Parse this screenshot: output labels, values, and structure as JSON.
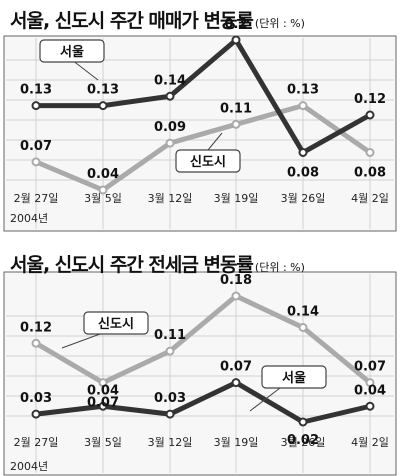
{
  "chart_data": [
    {
      "type": "line",
      "title": "서울, 신도시 주간 매매가 변동률",
      "unit": "(단위 : %)",
      "categories": [
        "2월 27일",
        "3월 5일",
        "3월 12일",
        "3월 19일",
        "3월 26일",
        "4월 2일"
      ],
      "year_label": "2004년",
      "series": [
        {
          "name": "서울",
          "values": [
            0.13,
            0.13,
            0.14,
            0.2,
            0.08,
            0.12
          ],
          "value_labels": [
            "0.13",
            "0.13",
            "0.14",
            "0.2",
            "0.08",
            "0.12"
          ],
          "color": "#333333"
        },
        {
          "name": "신도시",
          "values": [
            0.07,
            0.04,
            0.09,
            0.11,
            0.13,
            0.08
          ],
          "value_labels": [
            "0.07",
            "0.04",
            "0.09",
            "0.11",
            "0.13",
            "0.08"
          ],
          "color": "#aaaaaa"
        }
      ],
      "grid": true
    },
    {
      "type": "line",
      "title": "서울, 신도시 주간 전세금 변동률",
      "unit": "(단위 : %)",
      "categories": [
        "2월 27일",
        "3월 5일",
        "3월 12일",
        "3월 19일",
        "3월 26일",
        "4월 2일"
      ],
      "year_label": "2004년",
      "series": [
        {
          "name": "서울",
          "values": [
            0.03,
            0.04,
            0.03,
            0.07,
            0.02,
            0.04
          ],
          "value_labels": [
            "0.03",
            "0.04",
            "0.03",
            "0.07",
            "0.02",
            "0.04"
          ],
          "color": "#333333"
        },
        {
          "name": "신도시",
          "values": [
            0.12,
            0.07,
            0.11,
            0.18,
            0.14,
            0.07
          ],
          "value_labels": [
            "0.12",
            "0.07",
            "0.11",
            "0.18",
            "0.14",
            "0.07"
          ],
          "color": "#aaaaaa"
        }
      ],
      "grid": true
    }
  ]
}
